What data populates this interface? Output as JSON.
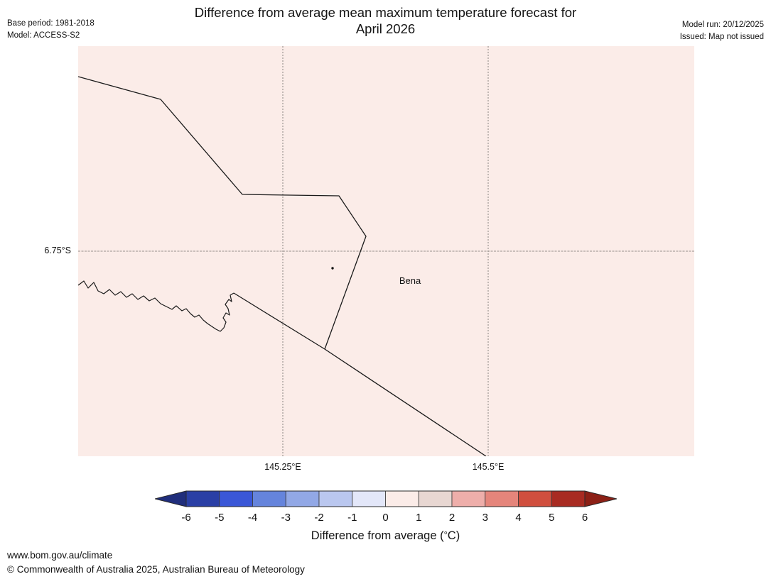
{
  "header": {
    "title_line1": "Difference from average mean maximum temperature forecast for",
    "title_line2": "April 2026",
    "base_period": "Base period: 1981-2018",
    "model": "Model: ACCESS-S2",
    "model_run": "Model run: 20/12/2025",
    "issued": "Issued: Map not issued"
  },
  "map": {
    "background_color": "#fbece8",
    "place_label": "Bena",
    "lat_gridline_label": "6.75°S",
    "lon_gridline_labels": [
      "145.25°E",
      "145.5°E"
    ]
  },
  "colorbar": {
    "label_prefix": "Difference from average (",
    "label_degree": "°",
    "label_suffix": "C)",
    "ticks": [
      "-6",
      "-5",
      "-4",
      "-3",
      "-2",
      "-1",
      "0",
      "1",
      "2",
      "3",
      "4",
      "5",
      "6"
    ],
    "segment_colors": [
      "#2a3fa5",
      "#3a57d7",
      "#6584dc",
      "#92a8e6",
      "#bac7ef",
      "#e3e7f9",
      "#fbece8",
      "#e8d7d2",
      "#eeaeaa",
      "#e5857b",
      "#d04f3e",
      "#a82b22"
    ],
    "left_arrow_color": "#202e7c",
    "right_arrow_color": "#8c2016",
    "outline_color": "#2a2a2a"
  },
  "footer": {
    "url": "www.bom.gov.au/climate",
    "copyright": "© Commonwealth of Australia 2025, Australian Bureau of Meteorology"
  }
}
